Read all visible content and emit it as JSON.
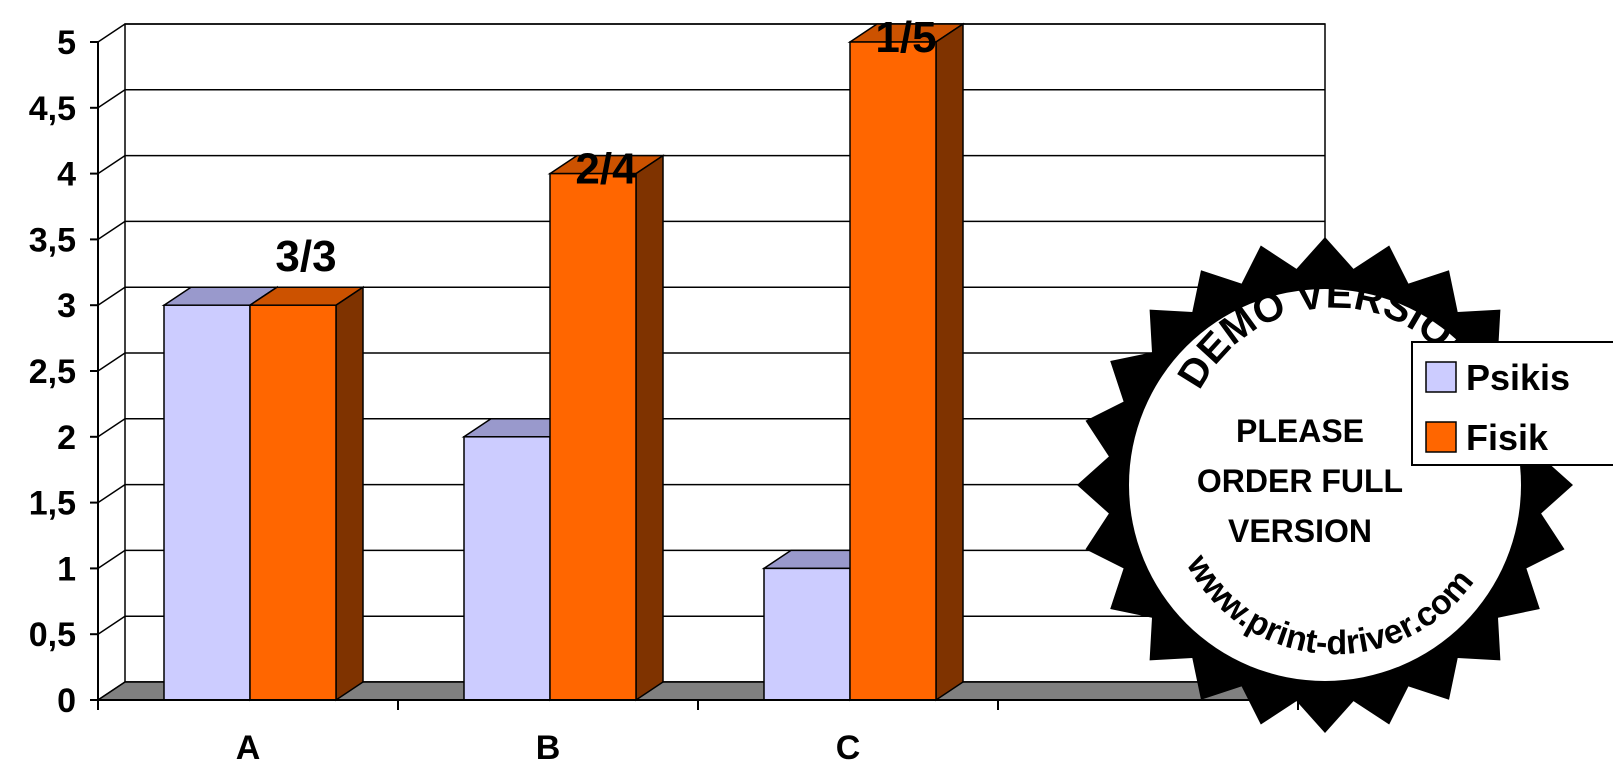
{
  "chart_data": {
    "type": "bar",
    "categories": [
      "A",
      "B",
      "C"
    ],
    "series": [
      {
        "name": "Psikis",
        "values": [
          3,
          2,
          1
        ]
      },
      {
        "name": "Fisik",
        "values": [
          3,
          4,
          5
        ]
      }
    ],
    "ylim": [
      0,
      5
    ],
    "yticks": [
      "0",
      "0,5",
      "1",
      "1,5",
      "2",
      "2,5",
      "3",
      "3,5",
      "4",
      "4,5",
      "5"
    ],
    "annotations": [
      "3/3",
      "2/4",
      "1/5"
    ],
    "grid": true,
    "legend": "right",
    "style": "3d-clustered-column",
    "colors": {
      "Psikis": "#ccccff",
      "Fisik": "#ff6600"
    }
  },
  "watermark": {
    "arc_text": "DEMO VERSION",
    "center_lines": [
      "PLEASE",
      "ORDER FULL",
      "VERSION"
    ],
    "bottom_arc_text": "www.print-driver.com"
  }
}
